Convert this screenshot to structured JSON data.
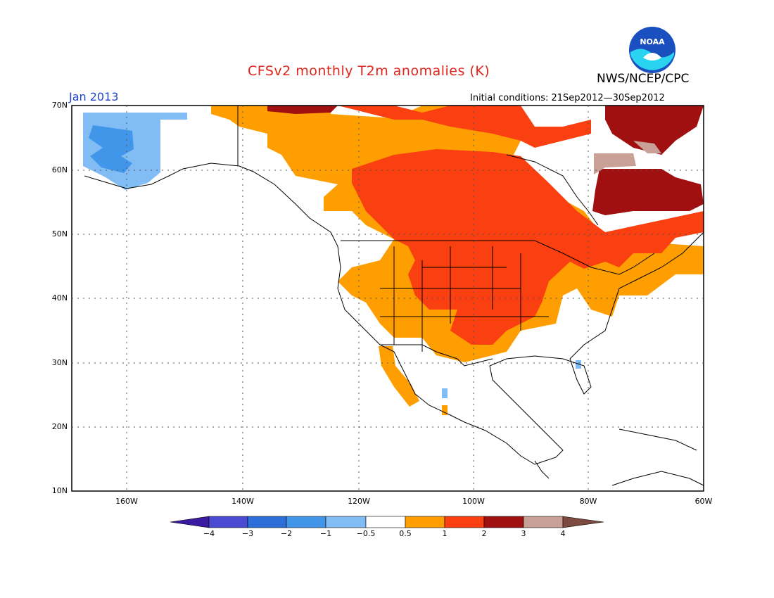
{
  "title": "CFSv2 monthly T2m anomalies (K)",
  "agency": "NWS/NCEP/CPC",
  "logo_text": "NOAA",
  "month_label": "Jan 2013",
  "initial_conditions": "Initial conditions: 21Sep2012—30Sep2012",
  "colors": {
    "title": "#e0241b",
    "month": "#1e46c8",
    "bins": [
      "#3a1aa0",
      "#4a4ad2",
      "#2e6ed8",
      "#4196ea",
      "#82bcf4",
      "#ffffff",
      "#ff9e00",
      "#fa4010",
      "#a01010",
      "#c8a095",
      "#7c4a3e"
    ]
  },
  "lat_labels": [
    "70N",
    "60N",
    "50N",
    "40N",
    "30N",
    "20N",
    "10N"
  ],
  "lon_labels": [
    "160W",
    "140W",
    "120W",
    "100W",
    "80W",
    "60W"
  ],
  "colorbar_ticks": [
    "−4",
    "−3",
    "−2",
    "−1",
    "−0.5",
    "0.5",
    "1",
    "2",
    "3",
    "4"
  ],
  "extent": {
    "lon_min": -170,
    "lon_max": -60,
    "lat_min": 10,
    "lat_max": 70
  }
}
